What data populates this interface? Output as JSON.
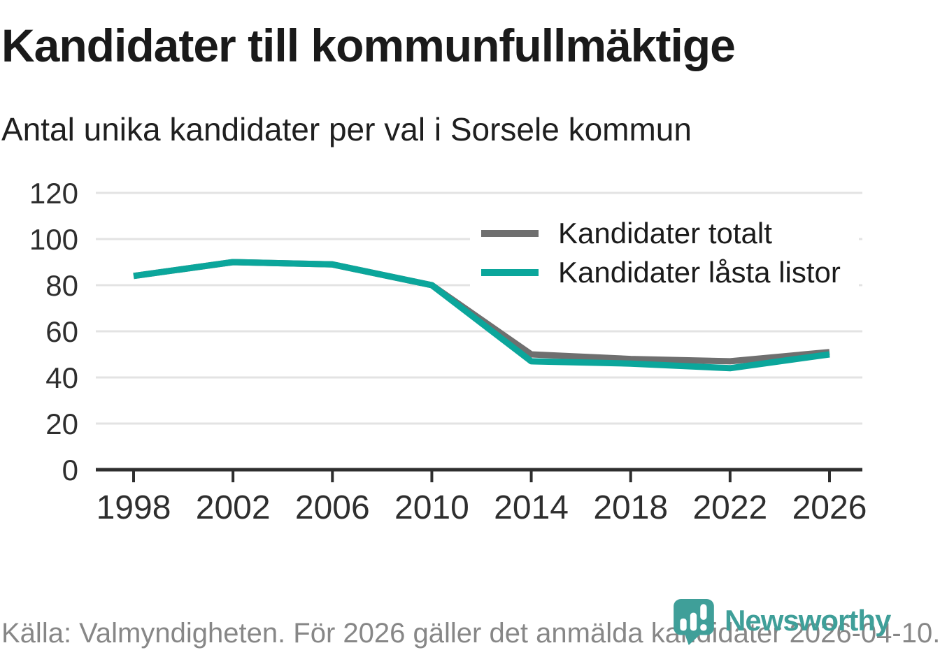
{
  "header": {
    "title": "Kandidater till kommunfullmäktige",
    "subtitle": "Antal unika kandidater per val i Sorsele kommun"
  },
  "footer": {
    "source_note": "Källa: Valmyndigheten. För 2026 gäller det anmälda kandidater 2026-04-10.",
    "brand": "Newsworthy"
  },
  "colors": {
    "series_total_gray": "#6f6f6f",
    "series_locked_teal": "#0ba69b",
    "gridline": "#e3e3e3",
    "axis": "#2e2e2e",
    "axis_text": "#2e2e2e",
    "footer_text": "#878787",
    "brand_teal": "#3f9f99",
    "background": "#ffffff"
  },
  "chart_data": {
    "type": "line",
    "title": "Kandidater till kommunfullmäktige",
    "subtitle": "Antal unika kandidater per val i Sorsele kommun",
    "categories": [
      "1998",
      "2002",
      "2006",
      "2010",
      "2014",
      "2018",
      "2022",
      "2026"
    ],
    "series": [
      {
        "name": "Kandidater totalt",
        "color": "#6f6f6f",
        "values": [
          84,
          90,
          89,
          80,
          50,
          48,
          47,
          51
        ]
      },
      {
        "name": "Kandidater låsta listor",
        "color": "#0ba69b",
        "values": [
          84,
          90,
          89,
          80,
          47,
          46,
          44,
          50
        ]
      }
    ],
    "xlabel": "",
    "ylabel": "",
    "ylim": [
      0,
      120
    ],
    "yticks": [
      0,
      20,
      40,
      60,
      80,
      100,
      120
    ],
    "grid": true,
    "legend_position": "top-right",
    "line_width": 9
  }
}
